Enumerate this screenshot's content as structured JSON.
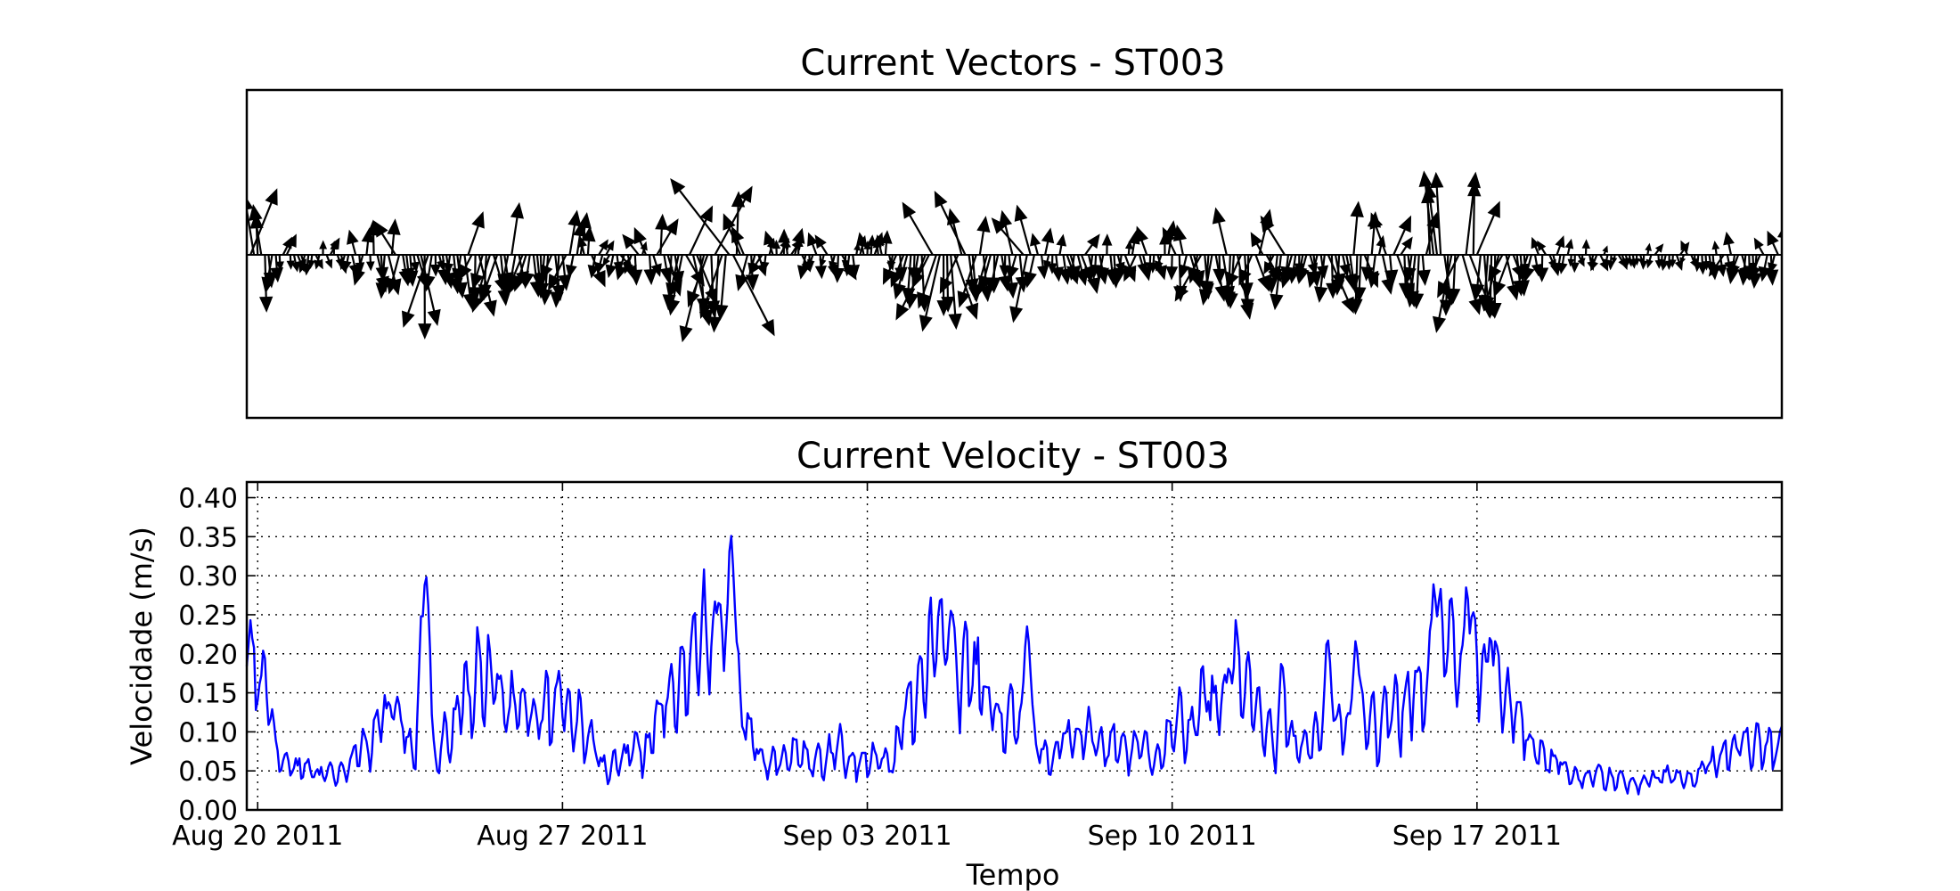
{
  "chart_data": [
    {
      "type": "quiver",
      "title": "Current Vectors - ST003",
      "xlabel": "",
      "ylabel": "",
      "xlim": [
        "2011-08-19T18:00",
        "2011-09-24T00:00"
      ],
      "grid": false,
      "arrow_color": "#000000",
      "vectors": []
    },
    {
      "type": "line",
      "title": "Current Velocity - ST003",
      "xlabel": "Tempo",
      "ylabel": "Velocidade (m/s)",
      "xlim": [
        "2011-08-19T18:00",
        "2011-09-24T00:00"
      ],
      "ylim": [
        0,
        0.42
      ],
      "grid": true,
      "x_ticks": [
        "2011-08-20",
        "2011-08-27",
        "2011-09-03",
        "2011-09-10",
        "2011-09-17"
      ],
      "x_tick_labels": [
        "Aug 20 2011",
        "Aug 27 2011",
        "Sep 03 2011",
        "Sep 10 2011",
        "Sep 17 2011"
      ],
      "y_ticks": [
        0.0,
        0.05,
        0.1,
        0.15,
        0.2,
        0.25,
        0.3,
        0.35,
        0.4
      ],
      "y_tick_labels": [
        "0.00",
        "0.05",
        "0.10",
        "0.15",
        "0.20",
        "0.25",
        "0.30",
        "0.35",
        "0.40"
      ],
      "series": [
        {
          "color": "#0000ff",
          "x": [],
          "y": []
        }
      ]
    }
  ]
}
